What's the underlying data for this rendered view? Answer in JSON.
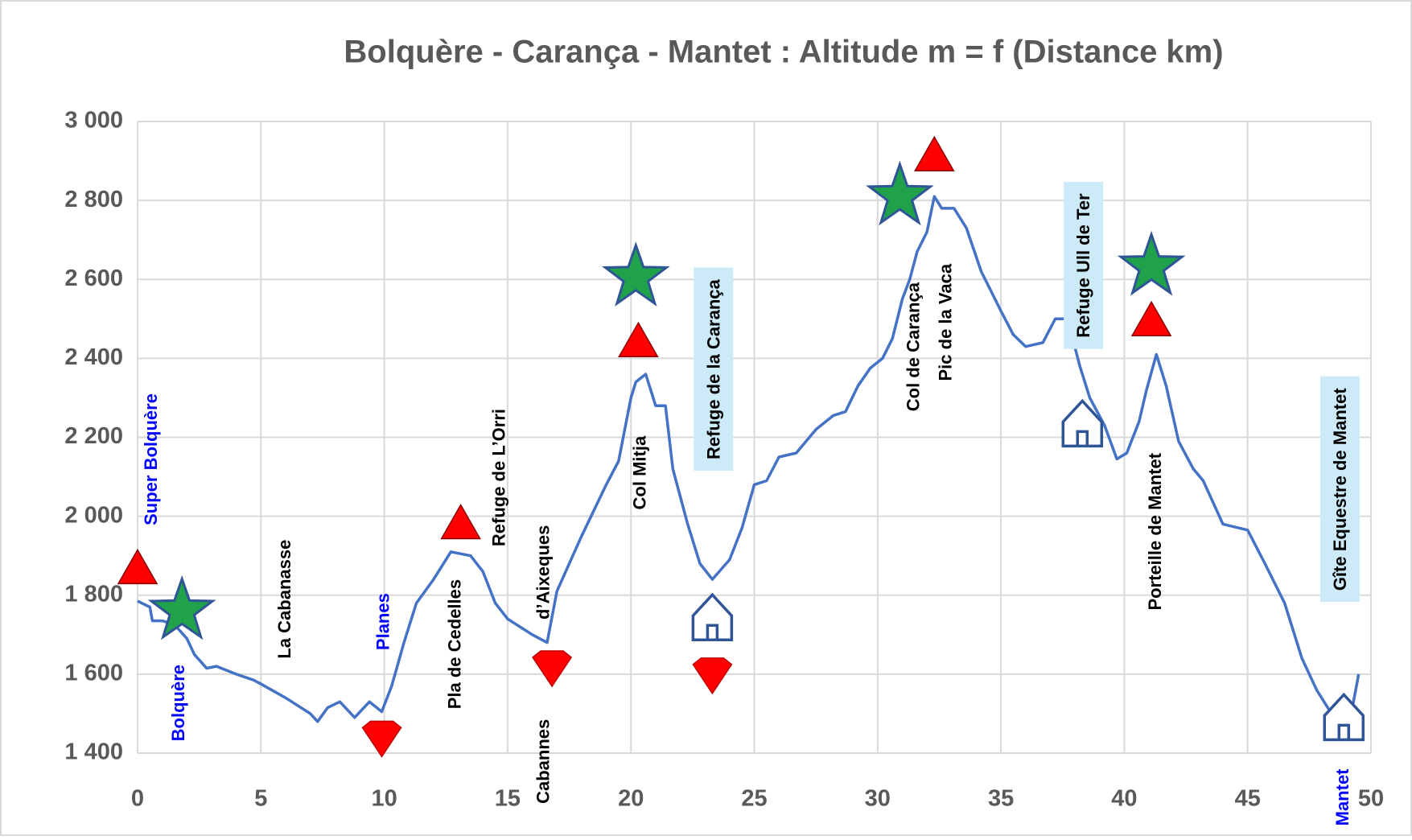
{
  "chart_data": {
    "type": "line",
    "title": "Bolquère - Carança - Mantet : Altitude m = f (Distance km)",
    "series": [
      {
        "color": "#4472c4",
        "x": [
          0,
          0.5,
          0.6,
          1,
          1.5,
          2,
          2.3,
          2.8,
          3.2,
          4,
          4.7,
          5,
          6,
          7,
          7.3,
          7.7,
          8.2,
          8.8,
          9.4,
          9.9,
          10.3,
          10.8,
          11.3,
          12,
          12.7,
          13.5,
          14,
          14.5,
          15,
          16,
          16.6,
          17,
          18,
          19,
          19.5,
          20,
          20.2,
          20.6,
          21,
          21.4,
          21.7,
          22.3,
          22.8,
          23.3,
          24,
          24.5,
          25,
          25.5,
          26,
          26.7,
          27.5,
          28.2,
          28.7,
          29.2,
          29.7,
          30.2,
          30.6,
          31,
          31.3,
          31.6,
          32,
          32.3,
          32.6,
          33.1,
          33.6,
          34.2,
          35,
          35.5,
          36,
          36.7,
          37.2,
          37.7,
          38.2,
          38.6,
          39.2,
          39.7,
          40.1,
          40.6,
          40.9,
          41.3,
          41.7,
          42.2,
          42.8,
          43.2,
          44,
          45,
          45.7,
          46.5,
          47.2,
          47.8,
          48.4,
          48.7,
          49.2,
          49.5
        ],
        "values": [
          1785,
          1770,
          1735,
          1735,
          1725,
          1690,
          1650,
          1615,
          1620,
          1600,
          1585,
          1575,
          1540,
          1500,
          1480,
          1515,
          1530,
          1490,
          1530,
          1505,
          1570,
          1680,
          1780,
          1840,
          1910,
          1900,
          1860,
          1780,
          1740,
          1700,
          1680,
          1810,
          1950,
          2080,
          2140,
          2300,
          2340,
          2360,
          2280,
          2280,
          2120,
          1980,
          1880,
          1840,
          1890,
          1970,
          2080,
          2090,
          2150,
          2160,
          2220,
          2255,
          2265,
          2330,
          2375,
          2400,
          2450,
          2550,
          2600,
          2670,
          2720,
          2810,
          2780,
          2780,
          2730,
          2620,
          2520,
          2460,
          2430,
          2440,
          2500,
          2500,
          2380,
          2300,
          2230,
          2145,
          2160,
          2240,
          2320,
          2410,
          2330,
          2190,
          2120,
          2090,
          1980,
          1965,
          1880,
          1780,
          1640,
          1560,
          1500,
          1510,
          1500,
          1600
        ]
      }
    ],
    "xlim": [
      0,
      50
    ],
    "xticks": [
      0,
      5,
      10,
      15,
      20,
      25,
      30,
      35,
      40,
      45,
      50
    ],
    "ylim": [
      1400,
      3000
    ],
    "yticks": [
      {
        "value": 1400,
        "label": "1 400"
      },
      {
        "value": 1600,
        "label": "1 600"
      },
      {
        "value": 1800,
        "label": "1 800"
      },
      {
        "value": 2000,
        "label": "2 000"
      },
      {
        "value": 2200,
        "label": "2 200"
      },
      {
        "value": 2400,
        "label": "2 400"
      },
      {
        "value": 2600,
        "label": "2 600"
      },
      {
        "value": 2800,
        "label": "2 800"
      },
      {
        "value": 3000,
        "label": "3 000"
      }
    ],
    "grid": true,
    "annotations": [
      {
        "text": "Super Bolquère",
        "x": 0.6,
        "y": 2144,
        "color": "#0000ff"
      },
      {
        "text": "Bolquère",
        "x": 1.7,
        "y": 1527,
        "color": "#0000ff"
      },
      {
        "text": "La Cabanasse",
        "x": 6.0,
        "y": 1790,
        "color": "#000000"
      },
      {
        "text": "Planes",
        "x": 10.0,
        "y": 1733,
        "color": "#0000ff"
      },
      {
        "text": "Pla de Cedelles",
        "x": 12.9,
        "y": 1676,
        "color": "#000000"
      },
      {
        "text": "Refuge de L’Orri",
        "x": 14.7,
        "y": 2098,
        "color": "#000000"
      },
      {
        "text": "d’Aixeques",
        "x": 16.5,
        "y": 1858,
        "color": "#000000"
      },
      {
        "text": "Cabannes",
        "x": 16.5,
        "y": 1379,
        "color": "#000000"
      },
      {
        "text": "Col Mitja",
        "x": 20.4,
        "y": 2110,
        "color": "#000000"
      },
      {
        "text": "Refuge de la Carança",
        "x": 23.4,
        "y": 2372,
        "color": "#000000",
        "highlight": "#cdeaf8"
      },
      {
        "text": "Col de Carança",
        "x": 31.5,
        "y": 2429,
        "color": "#000000"
      },
      {
        "text": "Pic de la Vaca",
        "x": 32.8,
        "y": 2491,
        "color": "#000000"
      },
      {
        "text": "Refuge Ull de Ter",
        "x": 38.4,
        "y": 2635,
        "color": "#000000",
        "highlight": "#cdeaf8"
      },
      {
        "text": "Porteille de Mantet",
        "x": 41.3,
        "y": 1961,
        "color": "#000000"
      },
      {
        "text": "Gîte Equestre de Mantet",
        "x": 48.8,
        "y": 2068,
        "color": "#000000",
        "highlight": "#cdeaf8"
      },
      {
        "text": "Mantet",
        "x": 48.9,
        "y": 1288,
        "color": "#0000ff"
      }
    ],
    "summits": {
      "color": "#ff0000",
      "x": [
        0,
        13.1,
        20.3,
        32.3,
        41.1
      ],
      "y": [
        1870,
        1984,
        2445,
        2916,
        2498
      ]
    },
    "lows": {
      "color": "#ff0000",
      "x": [
        9.9,
        16.8,
        23.3
      ],
      "y": [
        1436,
        1614,
        1596
      ]
    },
    "stars": {
      "color": "#1fa24a",
      "x": [
        1.8,
        20.2,
        30.9,
        41.1
      ],
      "y": [
        1760,
        2605,
        2810,
        2632
      ]
    },
    "huts": {
      "color": "#2f5597",
      "x": [
        23.3,
        38.3,
        48.9
      ],
      "y": [
        1744,
        2235,
        1491
      ]
    }
  }
}
